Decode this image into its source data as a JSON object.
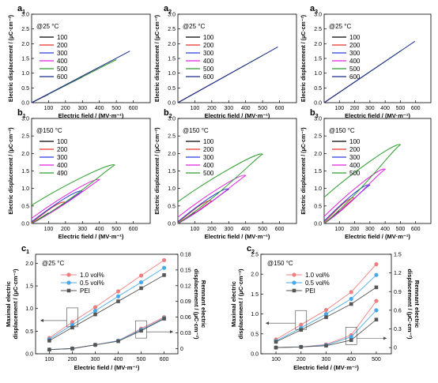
{
  "figure": {
    "panels": [
      {
        "id": "a1",
        "letter": "a",
        "sub": "1"
      },
      {
        "id": "a2",
        "letter": "a",
        "sub": "2"
      },
      {
        "id": "a3",
        "letter": "a",
        "sub": "3"
      },
      {
        "id": "b1",
        "letter": "b",
        "sub": "1"
      },
      {
        "id": "b2",
        "letter": "b",
        "sub": "2"
      },
      {
        "id": "b3",
        "letter": "b",
        "sub": "3"
      },
      {
        "id": "c1",
        "letter": "c",
        "sub": "1"
      },
      {
        "id": "c2",
        "letter": "c",
        "sub": "2"
      }
    ],
    "colors": {
      "100": "#000000",
      "200": "#e8332a",
      "300": "#2a3de0",
      "400": "#e020e0",
      "500": "#2e9e2e",
      "600": "#1a2a8c",
      "490": "#2e9e2e"
    },
    "series_colors": {
      "1.0 vol%": "#f08080",
      "0.5 vol%": "#4aa8e8",
      "PEI": "#555555"
    }
  },
  "chart_data": [
    {
      "panel": "a1",
      "type": "line",
      "annotation": "@25 °C",
      "xlabel": "Electric field / (MV·m⁻¹)",
      "ylabel": "Electric displacement / (μC·cm⁻²)",
      "xlim": [
        0,
        700
      ],
      "ylim": [
        0,
        3.0
      ],
      "xticks": [
        100,
        200,
        300,
        400,
        500,
        600
      ],
      "yticks": [
        "0.0",
        "0.5",
        "1.0",
        "1.5",
        "2.0",
        "2.5",
        "3.0"
      ],
      "series": [
        {
          "name": "100",
          "emax": 100,
          "dmax": 0.28
        },
        {
          "name": "200",
          "emax": 200,
          "dmax": 0.58
        },
        {
          "name": "300",
          "emax": 300,
          "dmax": 0.87
        },
        {
          "name": "400",
          "emax": 400,
          "dmax": 1.17
        },
        {
          "name": "500",
          "emax": 500,
          "dmax": 1.46
        },
        {
          "name": "600",
          "emax": 580,
          "dmax": 1.75
        }
      ]
    },
    {
      "panel": "a2",
      "type": "line",
      "annotation": "@25 °C",
      "xlabel": "Electric field / (MV·m⁻¹)",
      "ylabel": "Electric displacement / (μC·cm⁻²)",
      "xlim": [
        0,
        700
      ],
      "ylim": [
        0,
        3.0
      ],
      "xticks": [
        100,
        200,
        300,
        400,
        500,
        600
      ],
      "yticks": [
        "0.0",
        "0.5",
        "1.0",
        "1.5",
        "2.0",
        "2.5",
        "3.0"
      ],
      "series": [
        {
          "name": "100",
          "emax": 100,
          "dmax": 0.32
        },
        {
          "name": "200",
          "emax": 200,
          "dmax": 0.64
        },
        {
          "name": "300",
          "emax": 300,
          "dmax": 0.96
        },
        {
          "name": "400",
          "emax": 400,
          "dmax": 1.28
        },
        {
          "name": "500",
          "emax": 500,
          "dmax": 1.6
        },
        {
          "name": "600",
          "emax": 590,
          "dmax": 1.89
        }
      ]
    },
    {
      "panel": "a3",
      "type": "line",
      "annotation": "@25 °C",
      "xlabel": "Electric field / (MV·m⁻¹)",
      "ylabel": "Electric displacement / (μC·cm⁻²)",
      "xlim": [
        0,
        700
      ],
      "ylim": [
        0,
        3.0
      ],
      "xticks": [
        100,
        200,
        300,
        400,
        500,
        600
      ],
      "yticks": [
        "0.0",
        "0.5",
        "1.0",
        "1.5",
        "2.0",
        "2.5",
        "3.0"
      ],
      "series": [
        {
          "name": "100",
          "emax": 100,
          "dmax": 0.35
        },
        {
          "name": "200",
          "emax": 200,
          "dmax": 0.7
        },
        {
          "name": "300",
          "emax": 300,
          "dmax": 1.05
        },
        {
          "name": "400",
          "emax": 400,
          "dmax": 1.4
        },
        {
          "name": "500",
          "emax": 500,
          "dmax": 1.75
        },
        {
          "name": "600",
          "emax": 595,
          "dmax": 2.08
        }
      ]
    },
    {
      "panel": "b1",
      "type": "line",
      "annotation": "@150 °C",
      "xlabel": "Electric field / (MV·m⁻¹)",
      "ylabel": "Electric displacement / (μC·cm⁻²)",
      "xlim": [
        0,
        700
      ],
      "ylim": [
        0,
        3.0
      ],
      "xticks": [
        100,
        200,
        300,
        400,
        500,
        600
      ],
      "yticks": [
        "0.0",
        "0.5",
        "1.0",
        "1.5",
        "2.0",
        "2.5",
        "3.0"
      ],
      "series": [
        {
          "name": "100",
          "emax": 100,
          "dmax": 0.3,
          "dr": 0.0
        },
        {
          "name": "200",
          "emax": 200,
          "dmax": 0.6,
          "dr": 0.02
        },
        {
          "name": "300",
          "emax": 300,
          "dmax": 0.92,
          "dr": 0.05
        },
        {
          "name": "400",
          "emax": 400,
          "dmax": 1.25,
          "dr": 0.15
        },
        {
          "name": "490",
          "emax": 490,
          "dmax": 1.67,
          "dr": 0.52
        }
      ]
    },
    {
      "panel": "b2",
      "type": "line",
      "annotation": "@150 °C",
      "xlabel": "Electric field / (MV·m⁻¹)",
      "ylabel": "Electric displacement / (μC·cm⁻²)",
      "xlim": [
        0,
        700
      ],
      "ylim": [
        0,
        3.0
      ],
      "xticks": [
        100,
        200,
        300,
        400,
        500,
        600
      ],
      "yticks": [
        "0.0",
        "0.5",
        "1.0",
        "1.5",
        "2.0",
        "2.5",
        "3.0"
      ],
      "series": [
        {
          "name": "100",
          "emax": 100,
          "dmax": 0.32,
          "dr": 0.0
        },
        {
          "name": "200",
          "emax": 200,
          "dmax": 0.64,
          "dr": 0.02
        },
        {
          "name": "300",
          "emax": 300,
          "dmax": 0.98,
          "dr": 0.05
        },
        {
          "name": "400",
          "emax": 400,
          "dmax": 1.37,
          "dr": 0.18
        },
        {
          "name": "500",
          "emax": 500,
          "dmax": 1.98,
          "dr": 0.62
        }
      ]
    },
    {
      "panel": "b3",
      "type": "line",
      "annotation": "@150 °C",
      "xlabel": "Electric field / (MV·m⁻¹)",
      "ylabel": "Electric displacement / (μC·cm⁻²)",
      "xlim": [
        0,
        700
      ],
      "ylim": [
        0,
        3.0
      ],
      "xticks": [
        100,
        200,
        300,
        400,
        500,
        600
      ],
      "yticks": [
        "0.0",
        "0.5",
        "1.0",
        "1.5",
        "2.0",
        "2.5",
        "3.0"
      ],
      "series": [
        {
          "name": "100",
          "emax": 100,
          "dmax": 0.36,
          "dr": 0.0
        },
        {
          "name": "200",
          "emax": 200,
          "dmax": 0.72,
          "dr": 0.03
        },
        {
          "name": "300",
          "emax": 300,
          "dmax": 1.1,
          "dr": 0.07
        },
        {
          "name": "400",
          "emax": 400,
          "dmax": 1.55,
          "dr": 0.2
        },
        {
          "name": "500",
          "emax": 500,
          "dmax": 2.25,
          "dr": 0.75
        }
      ]
    },
    {
      "panel": "c1",
      "type": "line",
      "annotation": "@25 °C",
      "xlabel": "Electric field / (MV·m⁻¹)",
      "ylabel": "Maximal electric displacement / (μC·cm⁻²)",
      "ylabel2": "Remnant electric displacement / (μC·cm⁻²)",
      "x": [
        100,
        200,
        300,
        400,
        500,
        600
      ],
      "ylim": [
        0,
        2.2
      ],
      "ylim2": [
        -0.01,
        0.18
      ],
      "yticks": [
        "0.0",
        "0.5",
        "1.0",
        "1.5",
        "2.0"
      ],
      "yticks2": [
        "0",
        "0.03",
        "0.06",
        "0.09",
        "0.12",
        "0.15",
        "0.18"
      ],
      "series": [
        {
          "name": "1.0 vol%",
          "marker": "circle",
          "dmax": [
            0.35,
            0.7,
            1.03,
            1.38,
            1.73,
            2.07
          ],
          "dr": [
            -0.002,
            0.0,
            0.007,
            0.015,
            0.038,
            0.06
          ]
        },
        {
          "name": "0.5 vol%",
          "marker": "circle",
          "dmax": [
            0.32,
            0.64,
            0.95,
            1.27,
            1.58,
            1.9
          ],
          "dr": [
            -0.002,
            0.0,
            0.007,
            0.015,
            0.036,
            0.058
          ]
        },
        {
          "name": "PEI",
          "marker": "square",
          "dmax": [
            0.29,
            0.58,
            0.87,
            1.16,
            1.45,
            1.74
          ],
          "dr": [
            -0.002,
            0.0,
            0.007,
            0.014,
            0.034,
            0.057
          ]
        }
      ]
    },
    {
      "panel": "c2",
      "type": "line",
      "annotation": "@150 °C",
      "xlabel": "Electric field / (MV·m⁻¹)",
      "ylabel": "Maximal electric displacement / (μC·cm⁻²)",
      "ylabel2": "Remnant electric displacement / (μC·cm⁻²)",
      "x": [
        100,
        200,
        300,
        400,
        500
      ],
      "ylim": [
        0,
        2.5
      ],
      "ylim2": [
        -0.1,
        1.5
      ],
      "yticks": [
        "0.0",
        "0.5",
        "1.0",
        "1.5",
        "2.0",
        "2.5"
      ],
      "yticks2": [
        "0",
        "0.3",
        "0.6",
        "0.9",
        "1.2",
        "1.5"
      ],
      "series": [
        {
          "name": "1.0 vol%",
          "marker": "circle",
          "dmax": [
            0.36,
            0.73,
            1.1,
            1.55,
            2.25
          ],
          "dr": [
            0.0,
            0.01,
            0.05,
            0.2,
            0.75
          ]
        },
        {
          "name": "0.5 vol%",
          "marker": "circle",
          "dmax": [
            0.32,
            0.65,
            1.0,
            1.38,
            1.98
          ],
          "dr": [
            0.0,
            0.01,
            0.04,
            0.17,
            0.6
          ]
        },
        {
          "name": "PEI",
          "marker": "square",
          "dmax": [
            0.3,
            0.6,
            0.92,
            1.25,
            1.67
          ],
          "dr": [
            0.0,
            0.01,
            0.03,
            0.12,
            0.45
          ]
        }
      ]
    }
  ]
}
